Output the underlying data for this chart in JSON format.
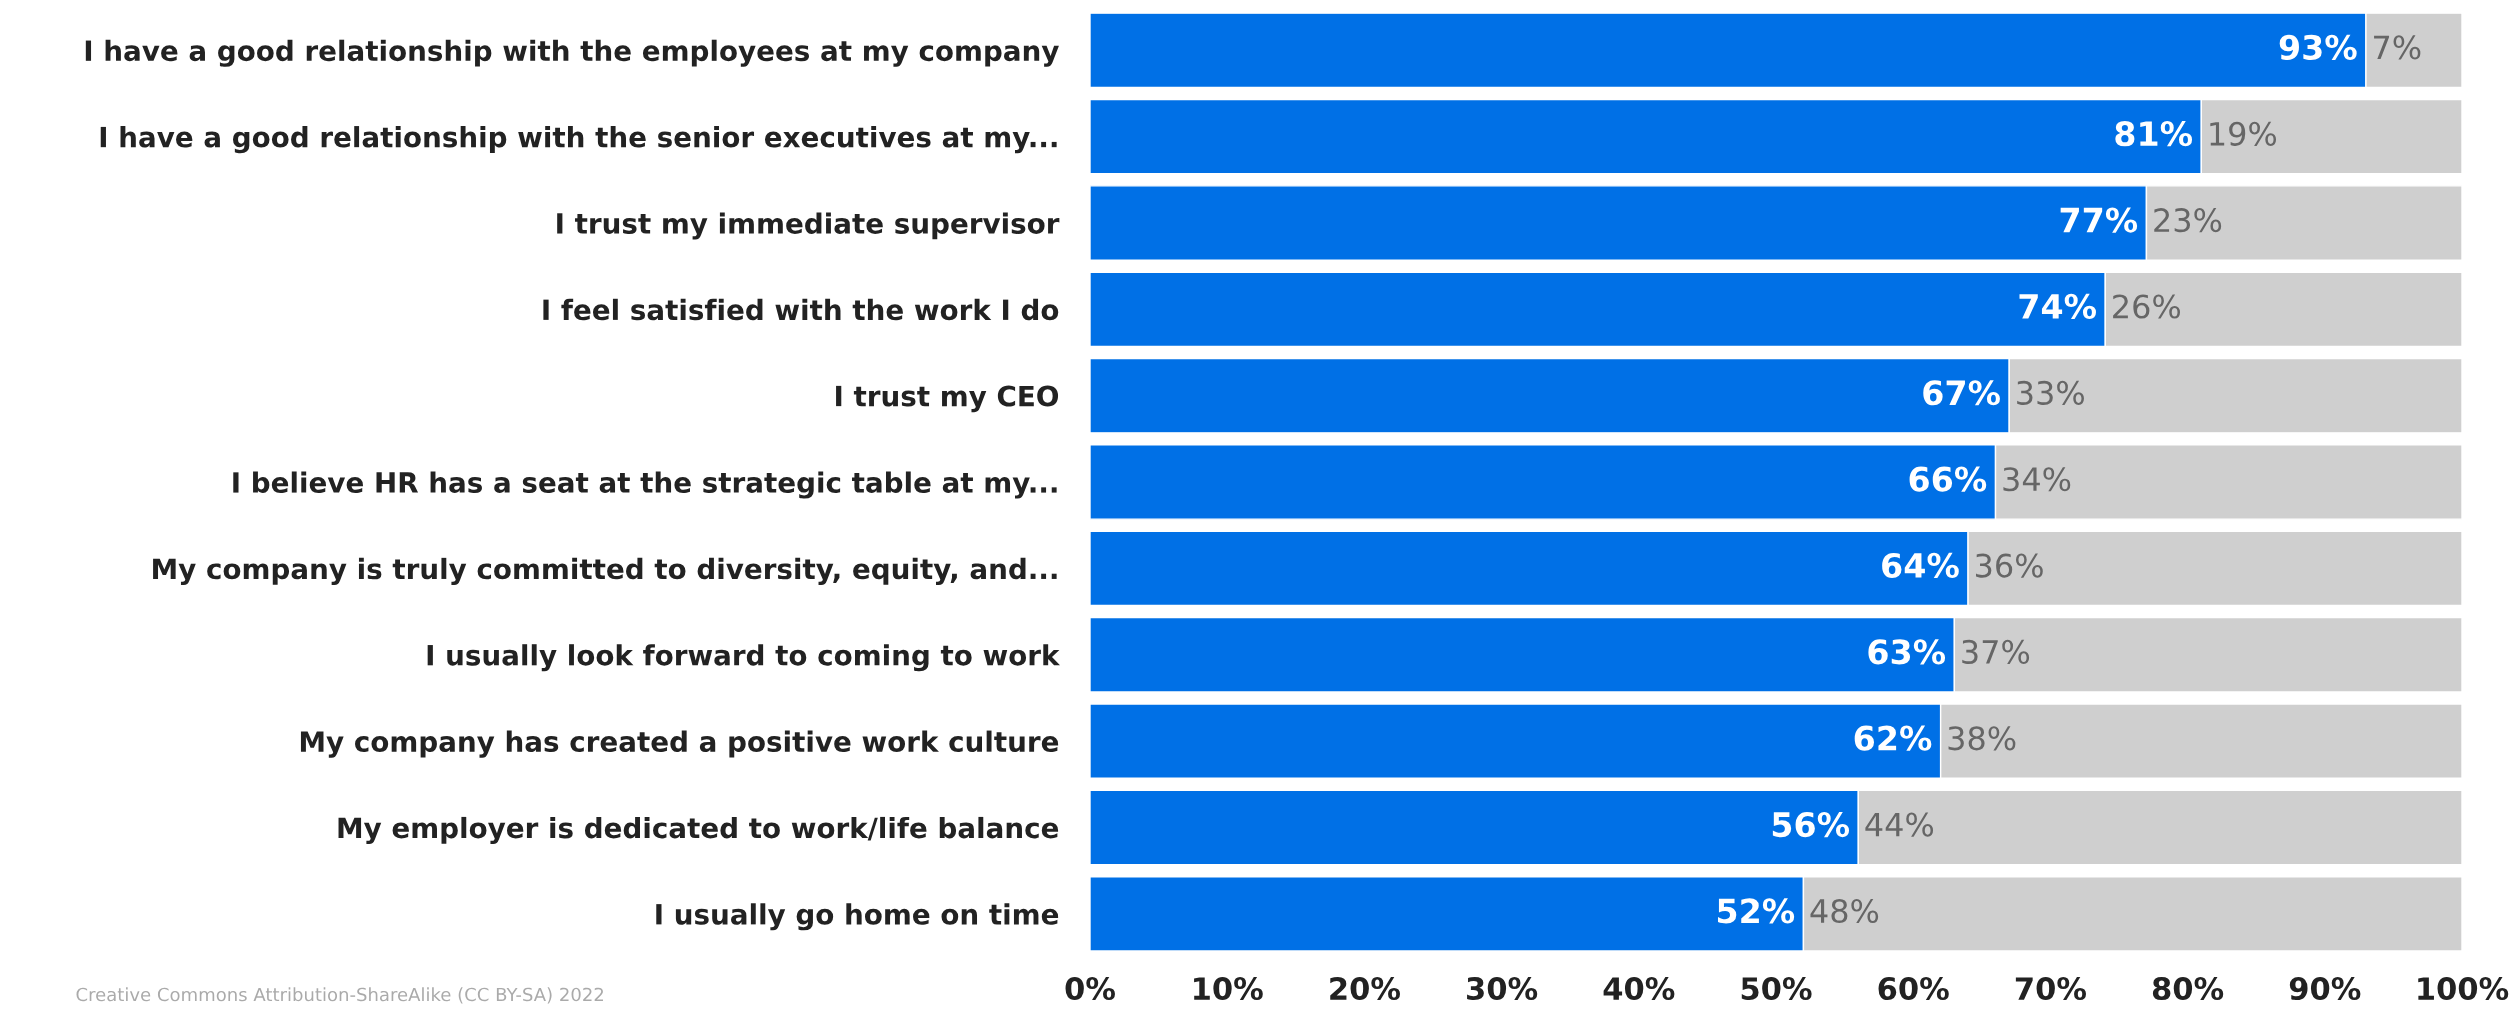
{
  "chart_data": {
    "type": "bar",
    "orientation": "horizontal",
    "stacked": true,
    "categories": [
      "I have a good relationship with the employees at my company",
      "I have a good relationship with the senior executives at my...",
      "I trust my immediate supervisor",
      "I feel satisfied with the work I do",
      "I trust my CEO",
      "I believe HR has a seat at the strategic table at my...",
      "My company is truly committed to diversity, equity, and...",
      "I usually look forward to coming to work",
      "My company has created a positive work culture",
      "My employer is dedicated to work/life balance",
      "I usually go home on time"
    ],
    "series": [
      {
        "color": "#0070e6",
        "values": [
          93,
          81,
          77,
          74,
          67,
          66,
          64,
          63,
          62,
          56,
          52
        ],
        "value_labels": [
          "93%",
          "81%",
          "77%",
          "74%",
          "67%",
          "66%",
          "64%",
          "63%",
          "62%",
          "56%",
          "52%"
        ]
      },
      {
        "color": "#cfcfcf",
        "values": [
          7,
          19,
          23,
          26,
          33,
          34,
          36,
          37,
          38,
          44,
          48
        ],
        "value_labels": [
          "7%",
          "19%",
          "23%",
          "26%",
          "33%",
          "34%",
          "36%",
          "37%",
          "38%",
          "44%",
          "48%"
        ]
      }
    ],
    "xlim": [
      0,
      100
    ],
    "xticks": [
      {
        "value": 0,
        "label": "0%"
      },
      {
        "value": 10,
        "label": "10%"
      },
      {
        "value": 20,
        "label": "20%"
      },
      {
        "value": 30,
        "label": "30%"
      },
      {
        "value": 40,
        "label": "40%"
      },
      {
        "value": 50,
        "label": "50%"
      },
      {
        "value": 60,
        "label": "60%"
      },
      {
        "value": 70,
        "label": "70%"
      },
      {
        "value": 80,
        "label": "80%"
      },
      {
        "value": 90,
        "label": "90%"
      },
      {
        "value": 100,
        "label": "100%"
      }
    ],
    "grid": false,
    "annotations": [
      "Creative Commons Attribution-ShareAlike (CC BY-SA) 2022"
    ]
  }
}
